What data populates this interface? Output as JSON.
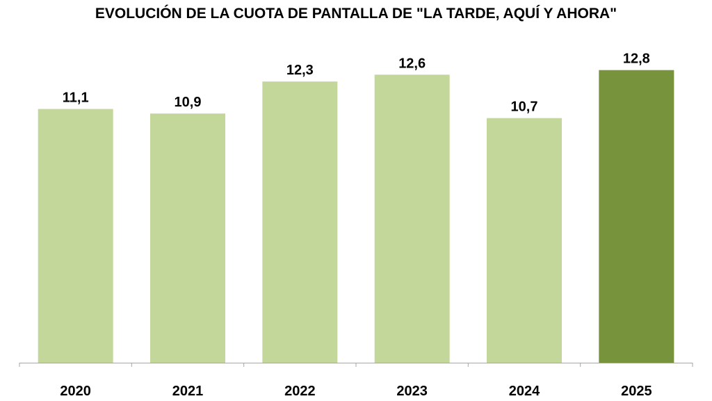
{
  "chart_data": {
    "type": "bar",
    "title": "EVOLUCIÓN DE LA CUOTA DE PANTALLA DE \"LA TARDE, AQUÍ Y AHORA\"",
    "categories": [
      "2020",
      "2021",
      "2022",
      "2023",
      "2024",
      "2025"
    ],
    "values": [
      11.1,
      10.9,
      12.3,
      12.6,
      10.7,
      12.8
    ],
    "value_labels": [
      "11,1",
      "10,9",
      "12,3",
      "12,6",
      "10,7",
      "12,8"
    ],
    "ylim": [
      0,
      14.1
    ],
    "grid": false,
    "legend": "none",
    "colors": {
      "bar": "#c4d79b",
      "highlight": "#77933c",
      "axis": "#a6a6a6"
    },
    "highlight_index": 5
  }
}
